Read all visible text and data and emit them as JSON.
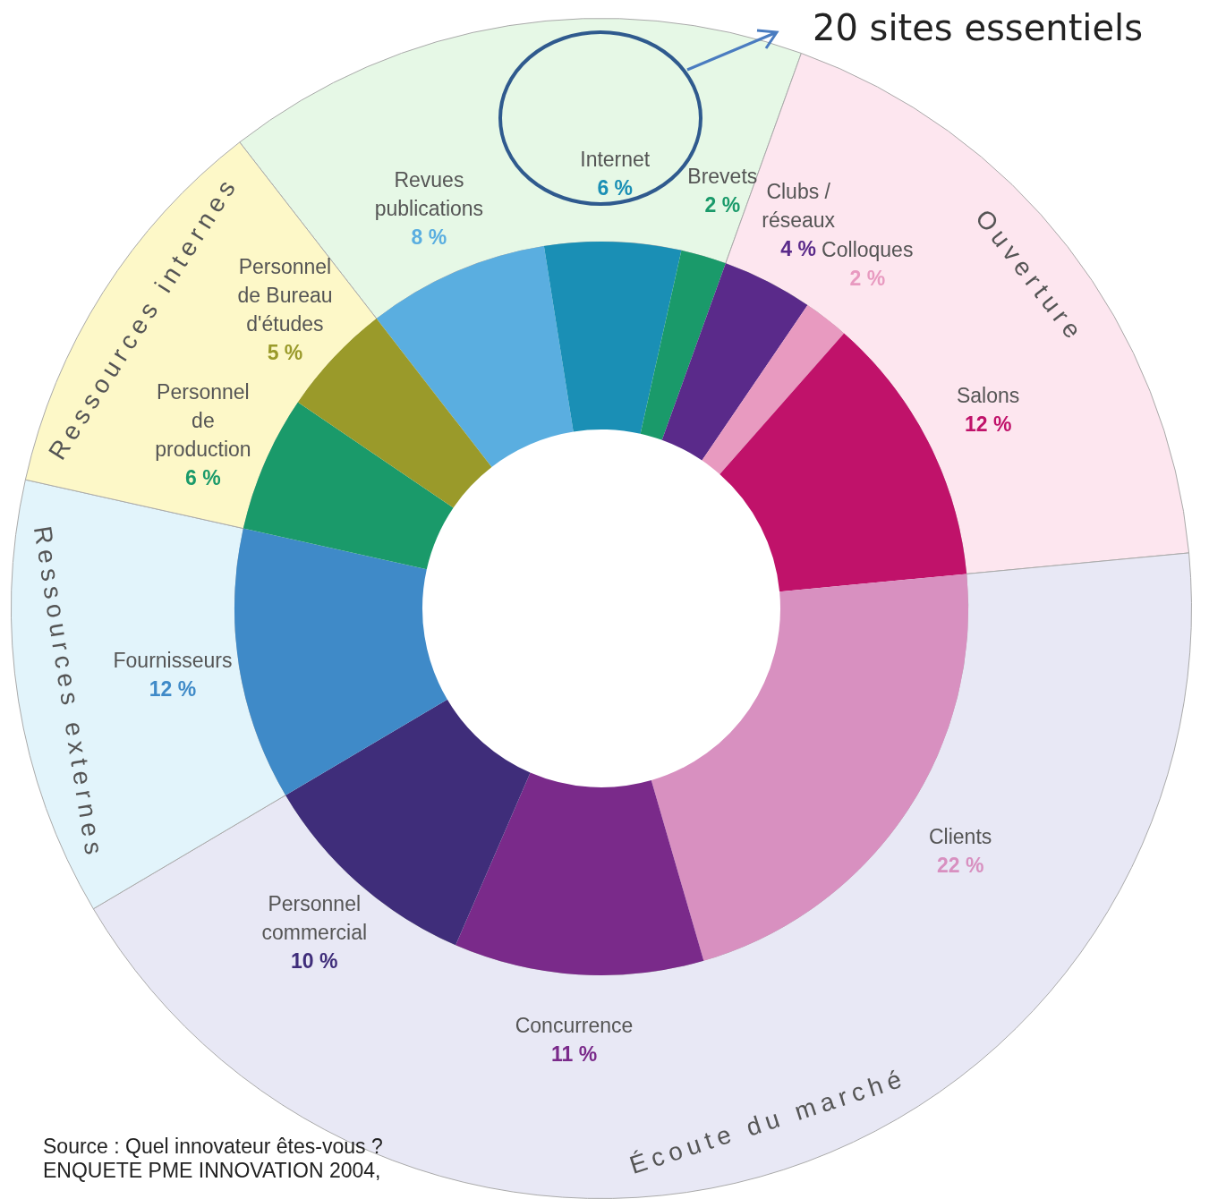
{
  "chart_data": [
    {
      "type": "donut",
      "categories": [
        null,
        "Ouverture",
        "Écoute du marché",
        "Ressources externes",
        "Ressources internes"
      ],
      "values": [
        16,
        18,
        43,
        12,
        11
      ],
      "colors": [
        "#e6f8e6",
        "#fde6ef",
        "#e8e8f5",
        "#e2f4fb",
        "#fdf8c8"
      ]
    },
    {
      "type": "donut",
      "categories": [
        "Revues publications",
        "Internet",
        "Brevets",
        "Clubs / réseaux",
        "Colloques",
        "Salons",
        "Clients",
        "Concurrence",
        "Personnel commercial",
        "Fournisseurs",
        "Personnel de production",
        "Personnel de Bureau d'études"
      ],
      "values": [
        8,
        6,
        2,
        4,
        2,
        12,
        22,
        11,
        10,
        12,
        6,
        5
      ],
      "value_labels": [
        "8 %",
        "6 %",
        "2 %",
        "4 %",
        "2 %",
        "12 %",
        "22 %",
        "11 %",
        "10 %",
        "12 %",
        "6 %",
        "5 %"
      ],
      "colors": [
        "#5aaee0",
        "#1a8fb5",
        "#1a9a6a",
        "#5a2a8a",
        "#e89ac0",
        "#c0126a",
        "#d890c0",
        "#7a2a8a",
        "#3f2d7a",
        "#3f8ac8",
        "#1a9a6a",
        "#9a9a2a"
      ],
      "annotations": [
        "20 sites essentiels",
        "Source : Quel innovateur êtes-vous ?\nENQUETE PME INNOVATION 2004,"
      ]
    }
  ]
}
